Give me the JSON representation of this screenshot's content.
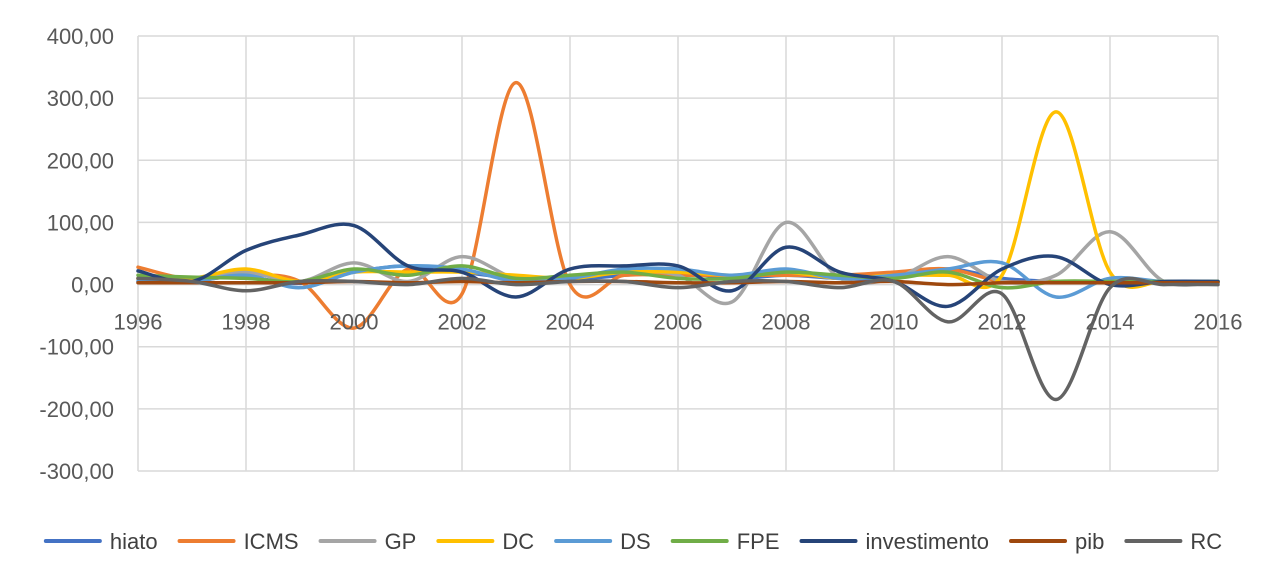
{
  "chart_data": {
    "type": "line",
    "smooth": true,
    "title": "",
    "xlabel": "",
    "ylabel": "",
    "x": [
      1996,
      1997,
      1998,
      1999,
      2000,
      2001,
      2002,
      2003,
      2004,
      2005,
      2006,
      2007,
      2008,
      2009,
      2010,
      2011,
      2012,
      2013,
      2014,
      2015,
      2016
    ],
    "xticks": [
      "1996",
      "1998",
      "2000",
      "2002",
      "2004",
      "2006",
      "2008",
      "2010",
      "2012",
      "2014",
      "2016"
    ],
    "xlim": [
      1996,
      2016
    ],
    "ylim": [
      -300,
      400
    ],
    "yticks": [
      "400,00",
      "300,00",
      "200,00",
      "100,00",
      "0,00",
      "-100,00",
      "-200,00",
      "-300,00"
    ],
    "ytick_values": [
      400,
      300,
      200,
      100,
      0,
      -100,
      -200,
      -300
    ],
    "grid": "vertical and horizontal",
    "legend_position": "bottom",
    "series": [
      {
        "name": "hiato",
        "color": "#4472C4",
        "values": [
          5,
          8,
          12,
          2,
          20,
          30,
          20,
          10,
          8,
          15,
          20,
          10,
          15,
          10,
          10,
          25,
          10,
          5,
          5,
          5,
          5
        ]
      },
      {
        "name": "ICMS",
        "color": "#ED7D31",
        "values": [
          28,
          8,
          15,
          5,
          -70,
          25,
          -15,
          325,
          0,
          15,
          15,
          15,
          15,
          15,
          20,
          25,
          5,
          5,
          5,
          5,
          5
        ]
      },
      {
        "name": "GP",
        "color": "#A5A5A5",
        "values": [
          10,
          10,
          20,
          5,
          35,
          5,
          45,
          10,
          10,
          20,
          15,
          -28,
          100,
          10,
          10,
          45,
          5,
          15,
          85,
          5,
          5
        ]
      },
      {
        "name": "DC",
        "color": "#FFC000",
        "values": [
          10,
          10,
          25,
          5,
          20,
          20,
          20,
          15,
          10,
          20,
          20,
          15,
          20,
          10,
          15,
          15,
          15,
          278,
          20,
          5,
          5
        ]
      },
      {
        "name": "DS",
        "color": "#5B9BD5",
        "values": [
          5,
          5,
          15,
          -5,
          20,
          30,
          25,
          5,
          10,
          25,
          25,
          15,
          25,
          10,
          15,
          25,
          35,
          -20,
          10,
          5,
          5
        ]
      },
      {
        "name": "FPE",
        "color": "#70AD47",
        "values": [
          15,
          12,
          10,
          5,
          25,
          15,
          30,
          10,
          15,
          20,
          10,
          10,
          20,
          15,
          10,
          20,
          -5,
          5,
          5,
          5,
          5
        ]
      },
      {
        "name": "investimento",
        "color": "#264478",
        "values": [
          22,
          5,
          55,
          80,
          95,
          30,
          20,
          -20,
          25,
          30,
          30,
          -10,
          60,
          20,
          5,
          -35,
          25,
          45,
          0,
          5,
          5
        ]
      },
      {
        "name": "pib",
        "color": "#9E480E",
        "values": [
          3,
          3,
          3,
          3,
          5,
          3,
          5,
          3,
          5,
          5,
          3,
          3,
          5,
          3,
          5,
          0,
          3,
          3,
          3,
          3,
          3
        ]
      },
      {
        "name": "RC",
        "color": "#636363",
        "values": [
          10,
          5,
          -10,
          5,
          5,
          0,
          10,
          0,
          5,
          5,
          -5,
          5,
          5,
          -5,
          5,
          -60,
          -15,
          -185,
          -5,
          0,
          0
        ]
      }
    ]
  }
}
